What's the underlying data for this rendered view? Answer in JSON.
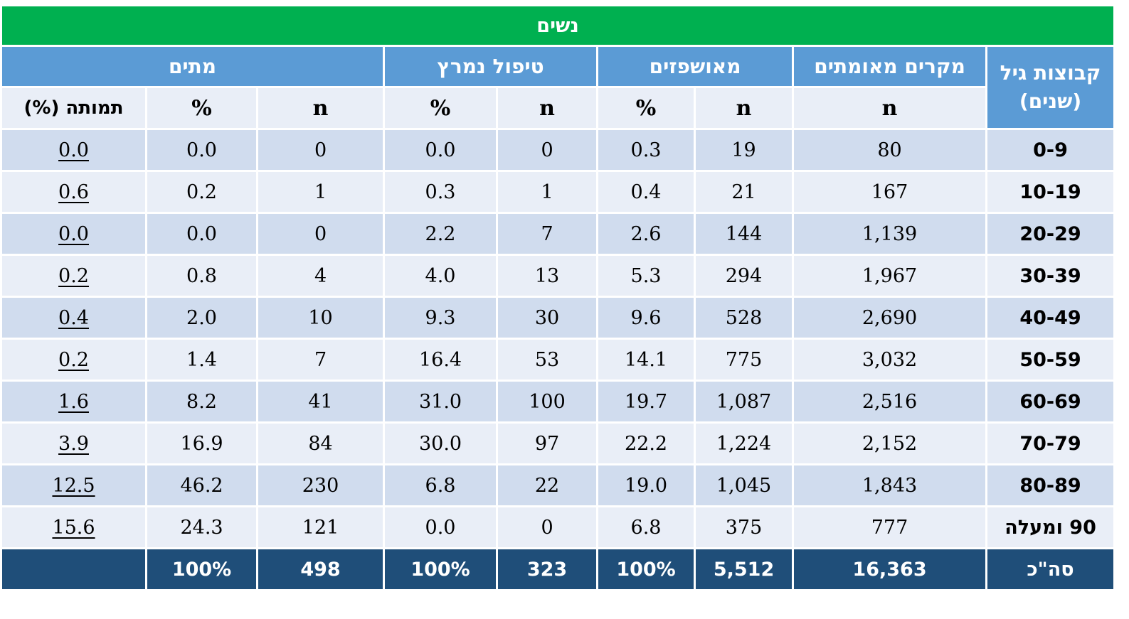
{
  "title": "נשים",
  "headers": {
    "age_group": "קבוצות גיל (שנים)",
    "confirmed": "מקרים מאומתים",
    "hospitalized": "מאושפזים",
    "severe": "טיפול נמרץ",
    "deaths": "מתים",
    "n": "n",
    "pct": "%",
    "mortality": "תמותה (%)"
  },
  "rows": [
    {
      "age": "0-9",
      "confirmed": "80",
      "hosp_n": "19",
      "hosp_pct": "0.3",
      "icu_n": "0",
      "icu_pct": "0.0",
      "death_n": "0",
      "death_pct": "0.0",
      "mortality": "0.0"
    },
    {
      "age": "10-19",
      "confirmed": "167",
      "hosp_n": "21",
      "hosp_pct": "0.4",
      "icu_n": "1",
      "icu_pct": "0.3",
      "death_n": "1",
      "death_pct": "0.2",
      "mortality": "0.6"
    },
    {
      "age": "20-29",
      "confirmed": "1,139",
      "hosp_n": "144",
      "hosp_pct": "2.6",
      "icu_n": "7",
      "icu_pct": "2.2",
      "death_n": "0",
      "death_pct": "0.0",
      "mortality": "0.0"
    },
    {
      "age": "30-39",
      "confirmed": "1,967",
      "hosp_n": "294",
      "hosp_pct": "5.3",
      "icu_n": "13",
      "icu_pct": "4.0",
      "death_n": "4",
      "death_pct": "0.8",
      "mortality": "0.2"
    },
    {
      "age": "40-49",
      "confirmed": "2,690",
      "hosp_n": "528",
      "hosp_pct": "9.6",
      "icu_n": "30",
      "icu_pct": "9.3",
      "death_n": "10",
      "death_pct": "2.0",
      "mortality": "0.4"
    },
    {
      "age": "50-59",
      "confirmed": "3,032",
      "hosp_n": "775",
      "hosp_pct": "14.1",
      "icu_n": "53",
      "icu_pct": "16.4",
      "death_n": "7",
      "death_pct": "1.4",
      "mortality": "0.2"
    },
    {
      "age": "60-69",
      "confirmed": "2,516",
      "hosp_n": "1,087",
      "hosp_pct": "19.7",
      "icu_n": "100",
      "icu_pct": "31.0",
      "death_n": "41",
      "death_pct": "8.2",
      "mortality": "1.6"
    },
    {
      "age": "70-79",
      "confirmed": "2,152",
      "hosp_n": "1,224",
      "hosp_pct": "22.2",
      "icu_n": "97",
      "icu_pct": "30.0",
      "death_n": "84",
      "death_pct": "16.9",
      "mortality": "3.9"
    },
    {
      "age": "80-89",
      "confirmed": "1,843",
      "hosp_n": "1,045",
      "hosp_pct": "19.0",
      "icu_n": "22",
      "icu_pct": "6.8",
      "death_n": "230",
      "death_pct": "46.2",
      "mortality": "12.5"
    },
    {
      "age": "90 ומעלה",
      "confirmed": "777",
      "hosp_n": "375",
      "hosp_pct": "6.8",
      "icu_n": "0",
      "icu_pct": "0.0",
      "death_n": "121",
      "death_pct": "24.3",
      "mortality": "15.6"
    }
  ],
  "total": {
    "label": "סה\"כ",
    "confirmed": "16,363",
    "hosp_n": "5,512",
    "hosp_pct": "100%",
    "icu_n": "323",
    "icu_pct": "100%",
    "death_n": "498",
    "death_pct": "100%",
    "mortality": ""
  },
  "colors": {
    "title_bg": "#00b050",
    "header_bg": "#5b9bd5",
    "row_light": "#e9eef7",
    "row_dark": "#d0dcee",
    "total_bg": "#1f4e79"
  }
}
